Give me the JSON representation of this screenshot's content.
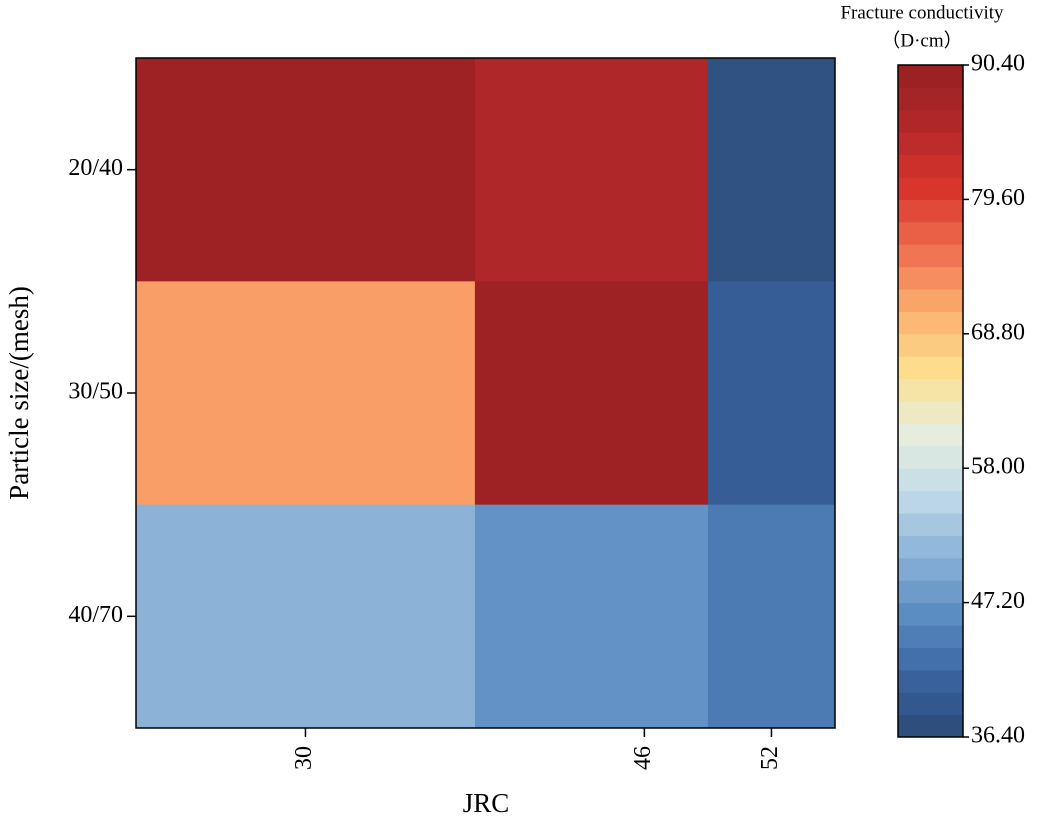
{
  "chart_data": {
    "type": "heatmap",
    "x_label": "JRC",
    "y_label": "Particle size/(mesh)",
    "x": [
      30,
      46,
      52
    ],
    "xlim": [
      22,
      55
    ],
    "xticks": [
      30,
      46,
      52
    ],
    "y_categories": [
      "20/40",
      "30/50",
      "40/70"
    ],
    "values": [
      [
        89,
        86,
        38
      ],
      [
        72,
        89,
        40
      ],
      [
        51,
        47,
        44
      ]
    ],
    "colorbar_title": [
      "Fracture conductivity",
      "（D·cm）"
    ],
    "clim": [
      36.4,
      90.4
    ],
    "cticks": [
      {
        "value": 36.4,
        "label": "36.40"
      },
      {
        "value": 47.2,
        "label": "47.20"
      },
      {
        "value": 58,
        "label": "58.00"
      },
      {
        "value": 68.8,
        "label": "68.80"
      },
      {
        "value": 79.6,
        "label": "79.60"
      },
      {
        "value": 90.4,
        "label": "90.40"
      }
    ],
    "colormap": [
      "#2b4a75",
      "#3a64a0",
      "#5a8cc2",
      "#8db4d8",
      "#c2dcea",
      "#e8eedb",
      "#fbdf8e",
      "#fbae6e",
      "#ef6e4f",
      "#d8342b",
      "#b2282a",
      "#962020"
    ]
  }
}
